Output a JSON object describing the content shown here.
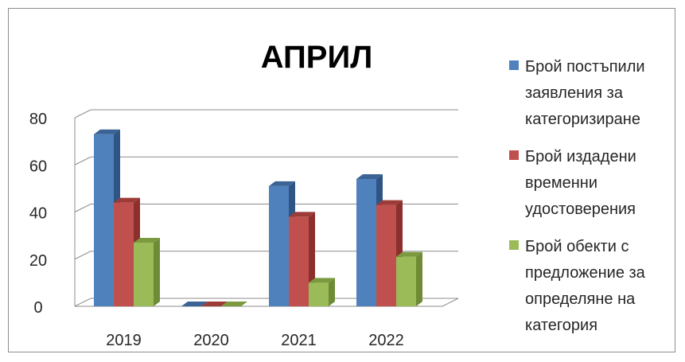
{
  "chart_data": {
    "type": "bar",
    "title": "АПРИЛ",
    "categories": [
      "2019",
      "2020",
      "2021",
      "2022"
    ],
    "series": [
      {
        "name": "Брой постъпили заявления за категоризиране",
        "values": [
          73,
          0,
          51,
          54
        ],
        "color": "#4f81bd",
        "top_color": "#3b6394",
        "side_color": "#2f5584"
      },
      {
        "name": "Брой издадени временни удостоверения",
        "values": [
          44,
          0,
          38,
          43
        ],
        "color": "#c0504d",
        "top_color": "#9c3b38",
        "side_color": "#8c302e"
      },
      {
        "name": "Брой обекти с предложение за определяне на категория",
        "values": [
          27,
          0,
          10,
          21
        ],
        "color": "#9bbb59",
        "top_color": "#7b9a3f",
        "side_color": "#6e8b35"
      }
    ],
    "yticks": [
      0,
      20,
      40,
      60,
      80
    ],
    "ylim": [
      0,
      80
    ],
    "grid": true,
    "legend_position": "right"
  }
}
